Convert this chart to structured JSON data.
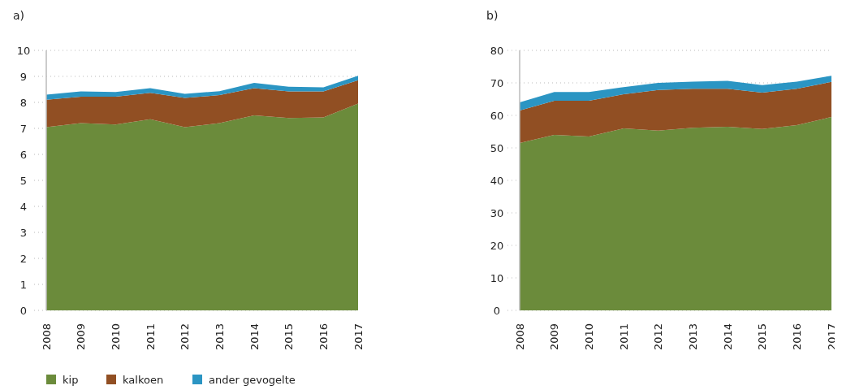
{
  "chart_data": [
    {
      "type": "area",
      "title": "a)",
      "stacked": true,
      "categories": [
        "2008",
        "2009",
        "2010",
        "2011",
        "2012",
        "2013",
        "2014",
        "2015",
        "2016",
        "2017"
      ],
      "ylim": [
        0,
        10
      ],
      "yticks": [
        0,
        1,
        2,
        3,
        4,
        5,
        6,
        7,
        8,
        9,
        10
      ],
      "grid": "y",
      "legend": "bottom",
      "series": [
        {
          "name": "kip",
          "color": "#6b8b3b",
          "values": [
            7.05,
            7.2,
            7.15,
            7.35,
            7.05,
            7.2,
            7.5,
            7.4,
            7.42,
            7.95
          ]
        },
        {
          "name": "kalkoen",
          "color": "#914f23",
          "values": [
            1.05,
            1.02,
            1.07,
            1.02,
            1.12,
            1.08,
            1.05,
            1.02,
            1.0,
            0.9
          ]
        },
        {
          "name": "ander gevogelte",
          "color": "#2b95c3",
          "values": [
            0.2,
            0.2,
            0.18,
            0.18,
            0.16,
            0.15,
            0.2,
            0.18,
            0.16,
            0.17
          ]
        }
      ]
    },
    {
      "type": "area",
      "title": "b)",
      "stacked": true,
      "categories": [
        "2008",
        "2009",
        "2010",
        "2011",
        "2012",
        "2013",
        "2014",
        "2015",
        "2016",
        "2017"
      ],
      "ylim": [
        0,
        80
      ],
      "yticks": [
        0,
        10,
        20,
        30,
        40,
        50,
        60,
        70,
        80
      ],
      "grid": "y",
      "series": [
        {
          "color": "#6b8b3b",
          "values": [
            51.5,
            54,
            53.5,
            56,
            55.3,
            56.2,
            56.5,
            55.8,
            57,
            59.5
          ]
        },
        {
          "color": "#914f23",
          "values": [
            10,
            10.5,
            11,
            10.5,
            12.5,
            12,
            11.7,
            11.2,
            11.2,
            10.8
          ]
        },
        {
          "color": "#2b95c3",
          "values": [
            2.5,
            2.7,
            2.7,
            2.2,
            2.2,
            2.2,
            2.4,
            2.3,
            2.2,
            1.9
          ]
        }
      ]
    }
  ]
}
